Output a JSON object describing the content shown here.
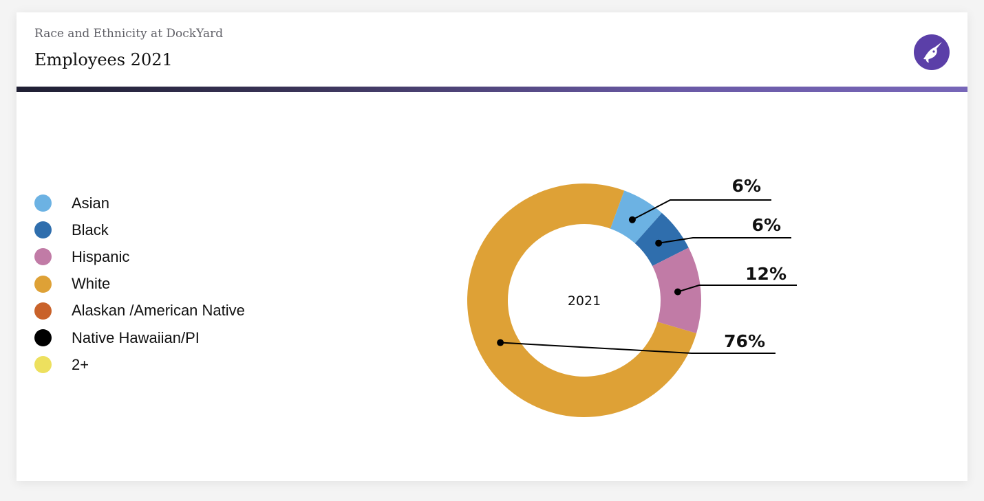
{
  "header": {
    "kicker": "Race and Ethnicity at DockYard",
    "title": "Employees 2021"
  },
  "logo": {
    "icon": "narwhal-icon",
    "color": "#5b3fa8"
  },
  "colors": {
    "accent_gradient": [
      "#1f1f33",
      "#7766b8"
    ]
  },
  "legend": [
    {
      "label": "Asian",
      "color": "#6cb2e3"
    },
    {
      "label": "Black",
      "color": "#2f6ead"
    },
    {
      "label": "Hispanic",
      "color": "#c17ba6"
    },
    {
      "label": "White",
      "color": "#dea136"
    },
    {
      "label": "Alaskan /American Native",
      "color": "#c9622a"
    },
    {
      "label": "Native Hawaiian/PI",
      "color": "#000000"
    },
    {
      "label": "2+",
      "color": "#ede05e"
    }
  ],
  "chart_data": {
    "type": "pie",
    "variant": "donut",
    "center_label": "2021",
    "slices": [
      {
        "name": "Asian",
        "value": 6,
        "label": "6%",
        "color": "#6cb2e3"
      },
      {
        "name": "Black",
        "value": 6,
        "label": "6%",
        "color": "#2f6ead"
      },
      {
        "name": "Hispanic",
        "value": 12,
        "label": "12%",
        "color": "#c17ba6"
      },
      {
        "name": "White",
        "value": 76,
        "label": "76%",
        "color": "#dea136"
      }
    ],
    "start_angle_deg": 20,
    "legend_position": "left"
  }
}
